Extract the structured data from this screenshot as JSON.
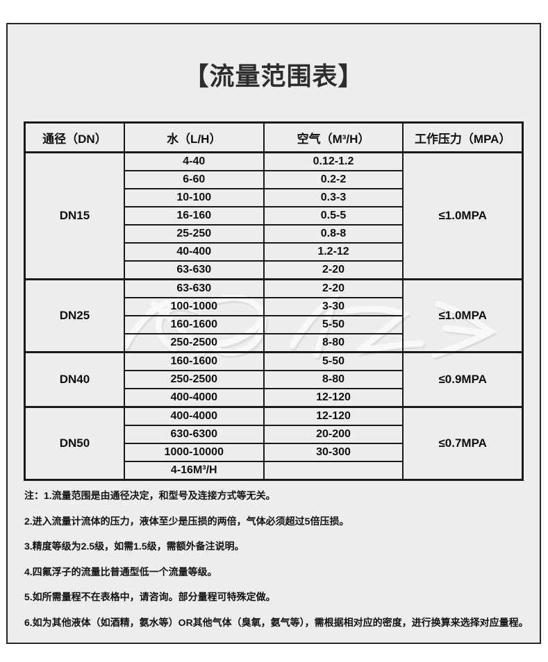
{
  "title": "【流量范围表】",
  "colors": {
    "page_bg": "#ffffff",
    "panel_bg": "#ededed",
    "border": "#191919",
    "text": "#111111"
  },
  "table": {
    "headers": [
      "通径（DN）",
      "水（L/H）",
      "空气（M³/H）",
      "工作压力（MPA）"
    ],
    "groups": [
      {
        "dn": "DN15",
        "pressure": "≤1.0MPA",
        "rows": [
          {
            "water": "4-40",
            "air": "0.12-1.2"
          },
          {
            "water": "6-60",
            "air": "0.2-2"
          },
          {
            "water": "10-100",
            "air": "0.3-3"
          },
          {
            "water": "16-160",
            "air": "0.5-5"
          },
          {
            "water": "25-250",
            "air": "0.8-8"
          },
          {
            "water": "40-400",
            "air": "1.2-12"
          },
          {
            "water": "63-630",
            "air": "2-20"
          }
        ]
      },
      {
        "dn": "DN25",
        "pressure": "≤1.0MPA",
        "rows": [
          {
            "water": "63-630",
            "air": "2-20"
          },
          {
            "water": "100-1000",
            "air": "3-30"
          },
          {
            "water": "160-1600",
            "air": "5-50"
          },
          {
            "water": "250-2500",
            "air": "8-80"
          }
        ]
      },
      {
        "dn": "DN40",
        "pressure": "≤0.9MPA",
        "rows": [
          {
            "water": "160-1600",
            "air": "5-50"
          },
          {
            "water": "250-2500",
            "air": "8-80"
          },
          {
            "water": "400-4000",
            "air": "12-120"
          }
        ]
      },
      {
        "dn": "DN50",
        "pressure": "≤0.7MPA",
        "rows": [
          {
            "water": "400-4000",
            "air": "12-120"
          },
          {
            "water": "630-6300",
            "air": "20-200"
          },
          {
            "water": "1000-10000",
            "air": "30-300"
          },
          {
            "water": "4-16M³/H",
            "air": ""
          }
        ]
      }
    ]
  },
  "notes": [
    "注：1.流量范围是由通径决定，和型号及连接方式等无关。",
    "2.进入流量计流体的压力，液体至少是压损的两倍，气体必须超过5倍压损。",
    "3.精度等级为2.5级，如需1.5级，需额外备注说明。",
    "4.四氟浮子的流量比普通型低一个流量等级。",
    "5.如所需量程不在表格中，请咨询。部分量程可特殊定做。",
    "6.如为其他液体（如酒精，氨水等）OR其他气体（臭氧，氨气等），需根据相对应的密度，进行换算来选择对应量程。"
  ]
}
